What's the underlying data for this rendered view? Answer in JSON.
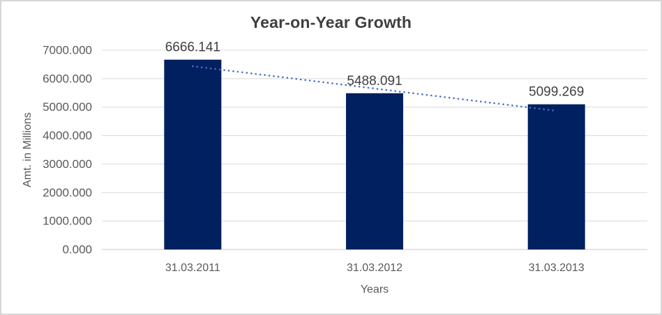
{
  "chart": {
    "background": "#ffffff",
    "border_color": "#d6d6d6"
  },
  "chart_data": {
    "type": "bar",
    "title": "Year-on-Year Growth",
    "xlabel": "Years",
    "ylabel": "Amt. in Millions",
    "categories": [
      "31.03.2011",
      "31.03.2012",
      "31.03.2013"
    ],
    "values": [
      6666.141,
      5488.091,
      5099.269
    ],
    "data_labels": [
      "6666.141",
      "5488.091",
      "5099.269"
    ],
    "ylim": [
      0,
      7000
    ],
    "y_ticks": [
      "0.000",
      "1000.000",
      "2000.000",
      "3000.000",
      "4000.000",
      "5000.000",
      "6000.000",
      "7000.000"
    ],
    "grid": true,
    "legend": "none",
    "trendline": {
      "type": "linear",
      "style": "dotted",
      "color": "#4472c4"
    },
    "colors": {
      "bar": "#002060",
      "gridline": "#d9d9d9",
      "axis_line": "#c8c8c8",
      "title_text": "#3f3f3f",
      "tick_text": "#595959",
      "axis_title_text": "#595959",
      "data_label_text": "#404040"
    }
  }
}
